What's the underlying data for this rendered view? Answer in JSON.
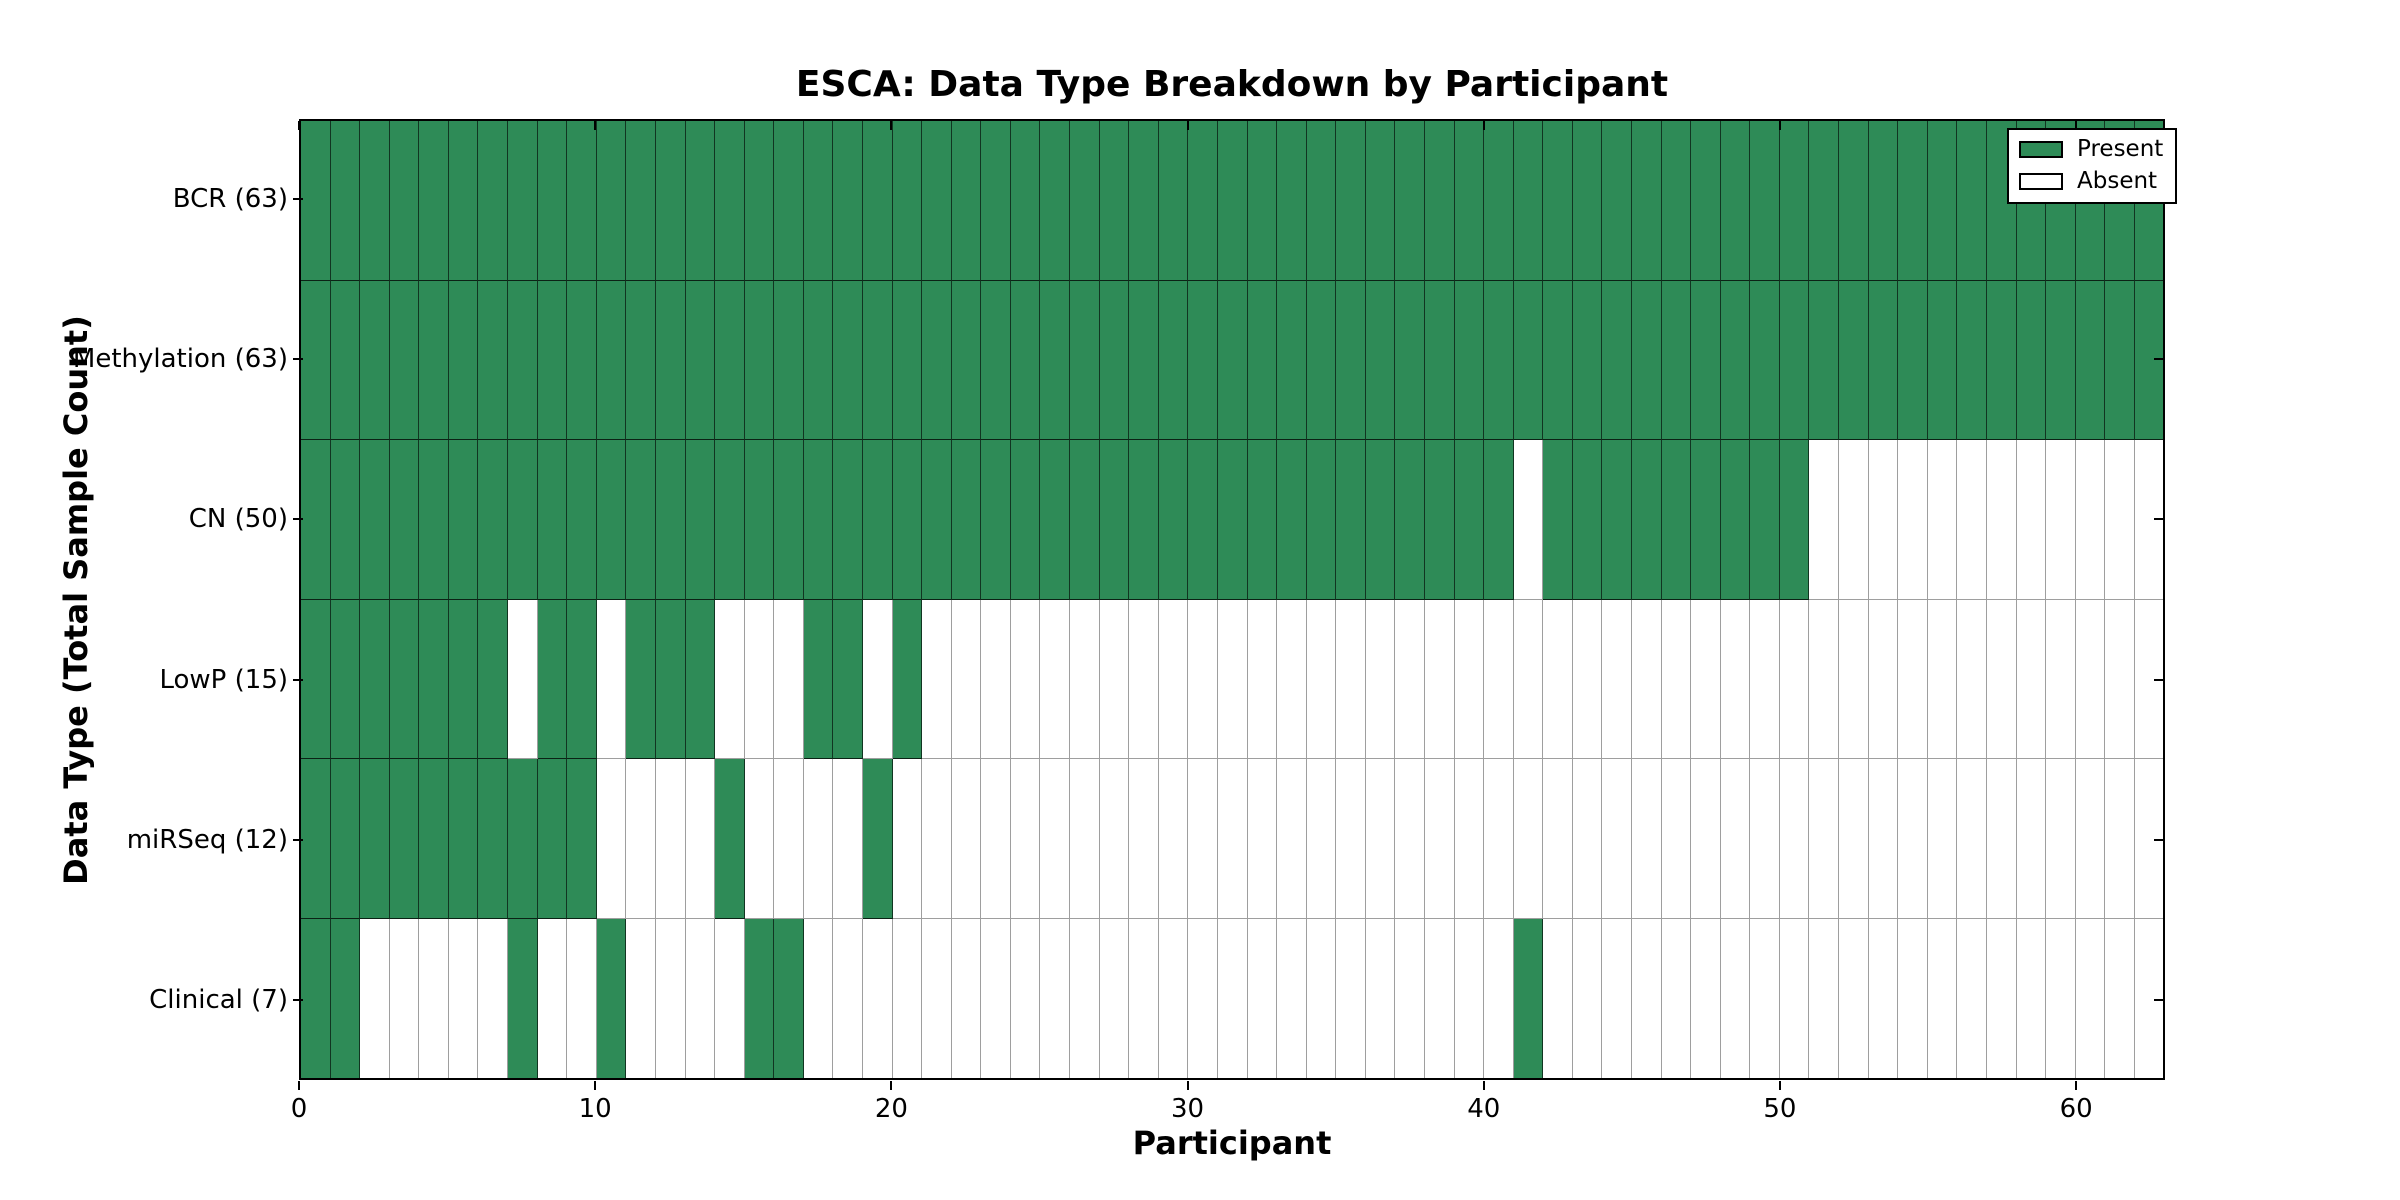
{
  "chart_data": {
    "type": "heatmap",
    "title": "ESCA: Data Type Breakdown by Participant",
    "xlabel": "Participant",
    "ylabel": "Data Type (Total Sample Count)",
    "n_participants": 63,
    "xlim": [
      0,
      63
    ],
    "x_ticks": [
      0,
      10,
      20,
      30,
      40,
      50,
      60
    ],
    "grid": false,
    "colors": {
      "present": "#2e8b57",
      "absent": "#ffffff"
    },
    "legend": {
      "position": "upper right",
      "entries": [
        {
          "label": "Present",
          "color": "#2e8b57"
        },
        {
          "label": "Absent",
          "color": "#ffffff"
        }
      ]
    },
    "rows": [
      {
        "label": "BCR (63)",
        "name": "bcr",
        "total": 63,
        "present_ranges": [
          [
            0,
            63
          ]
        ]
      },
      {
        "label": "Methylation (63)",
        "name": "methylation",
        "total": 63,
        "present_ranges": [
          [
            0,
            63
          ]
        ]
      },
      {
        "label": "CN (50)",
        "name": "cn",
        "total": 50,
        "present_ranges": [
          [
            0,
            41
          ],
          [
            42,
            51
          ]
        ]
      },
      {
        "label": "LowP (15)",
        "name": "lowp",
        "total": 15,
        "present_ranges": [
          [
            0,
            7
          ],
          [
            8,
            10
          ],
          [
            11,
            14
          ],
          [
            17,
            19
          ],
          [
            20,
            21
          ]
        ]
      },
      {
        "label": "miRSeq (12)",
        "name": "mirseq",
        "total": 12,
        "present_ranges": [
          [
            0,
            10
          ],
          [
            14,
            15
          ],
          [
            19,
            20
          ]
        ]
      },
      {
        "label": "Clinical (7)",
        "name": "clinical",
        "total": 7,
        "present_ranges": [
          [
            0,
            2
          ],
          [
            7,
            8
          ],
          [
            10,
            11
          ],
          [
            15,
            17
          ],
          [
            41,
            42
          ]
        ]
      }
    ]
  }
}
